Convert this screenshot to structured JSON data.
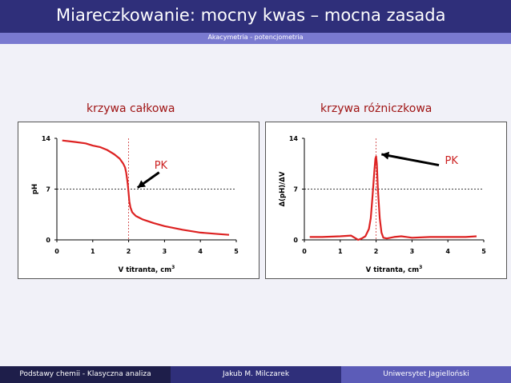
{
  "header": {
    "title": "Miareczkowanie: mocny kwas – mocna zasada"
  },
  "subheader": {
    "text": "Akacymetria - potencjometria"
  },
  "footer": {
    "left": "Podstawy chemii - Klasyczna analiza",
    "center": "Jakub M. Milczarek",
    "right": "Uniwersytet Jagielloński"
  },
  "colors": {
    "header": "#2f2f7a",
    "subbar": "#7a7ad0",
    "curve": "#dd2222",
    "heading": "#a01515"
  },
  "chart_data": [
    {
      "type": "line",
      "heading": "krzywa całkowa",
      "xlabel": "V titranta, cm",
      "xlabel_sup": "3",
      "ylabel": "pH",
      "xlim": [
        0,
        5
      ],
      "ylim": [
        0,
        14
      ],
      "xticks": [
        0,
        1,
        2,
        3,
        4,
        5
      ],
      "yticks": [
        0,
        7,
        14
      ],
      "annotation": "PK",
      "equivalence": {
        "x": 2.0,
        "y": 7
      },
      "series": [
        {
          "x": [
            0.15,
            0.5,
            0.8,
            1.0,
            1.2,
            1.4,
            1.6,
            1.75,
            1.85,
            1.9,
            1.93,
            1.96,
            1.98,
            2.0,
            2.02,
            2.05,
            2.1,
            2.2,
            2.4,
            2.7,
            3.0,
            3.5,
            4.0,
            4.5,
            4.8
          ],
          "y": [
            13.7,
            13.5,
            13.3,
            13.0,
            12.8,
            12.4,
            11.8,
            11.2,
            10.5,
            10.0,
            9.3,
            8.3,
            7.5,
            6.4,
            5.3,
            4.5,
            3.8,
            3.3,
            2.8,
            2.3,
            1.9,
            1.4,
            1.0,
            0.8,
            0.7
          ]
        }
      ]
    },
    {
      "type": "line",
      "heading": "krzywa różniczkowa",
      "xlabel": "V titranta, cm",
      "xlabel_sup": "3",
      "ylabel": "Δ(pH)/ΔV",
      "xlim": [
        0,
        5
      ],
      "ylim": [
        0,
        14
      ],
      "xticks": [
        0,
        1,
        2,
        3,
        4,
        5
      ],
      "yticks": [
        0,
        7,
        14
      ],
      "annotation": "PK",
      "equivalence": {
        "x": 2.0,
        "y": 7
      },
      "series": [
        {
          "x": [
            0.15,
            0.5,
            1.0,
            1.3,
            1.5,
            1.6,
            1.7,
            1.8,
            1.85,
            1.9,
            1.95,
            1.98,
            2.0,
            2.02,
            2.05,
            2.1,
            2.15,
            2.2,
            2.3,
            2.5,
            2.7,
            3.0,
            3.5,
            4.0,
            4.5,
            4.8
          ],
          "y": [
            0.4,
            0.4,
            0.5,
            0.6,
            0.0,
            0.2,
            0.5,
            1.5,
            3.0,
            6.0,
            9.5,
            11.2,
            11.5,
            10.5,
            7.0,
            3.0,
            1.0,
            0.3,
            0.2,
            0.4,
            0.5,
            0.3,
            0.4,
            0.4,
            0.4,
            0.5
          ]
        }
      ]
    }
  ]
}
